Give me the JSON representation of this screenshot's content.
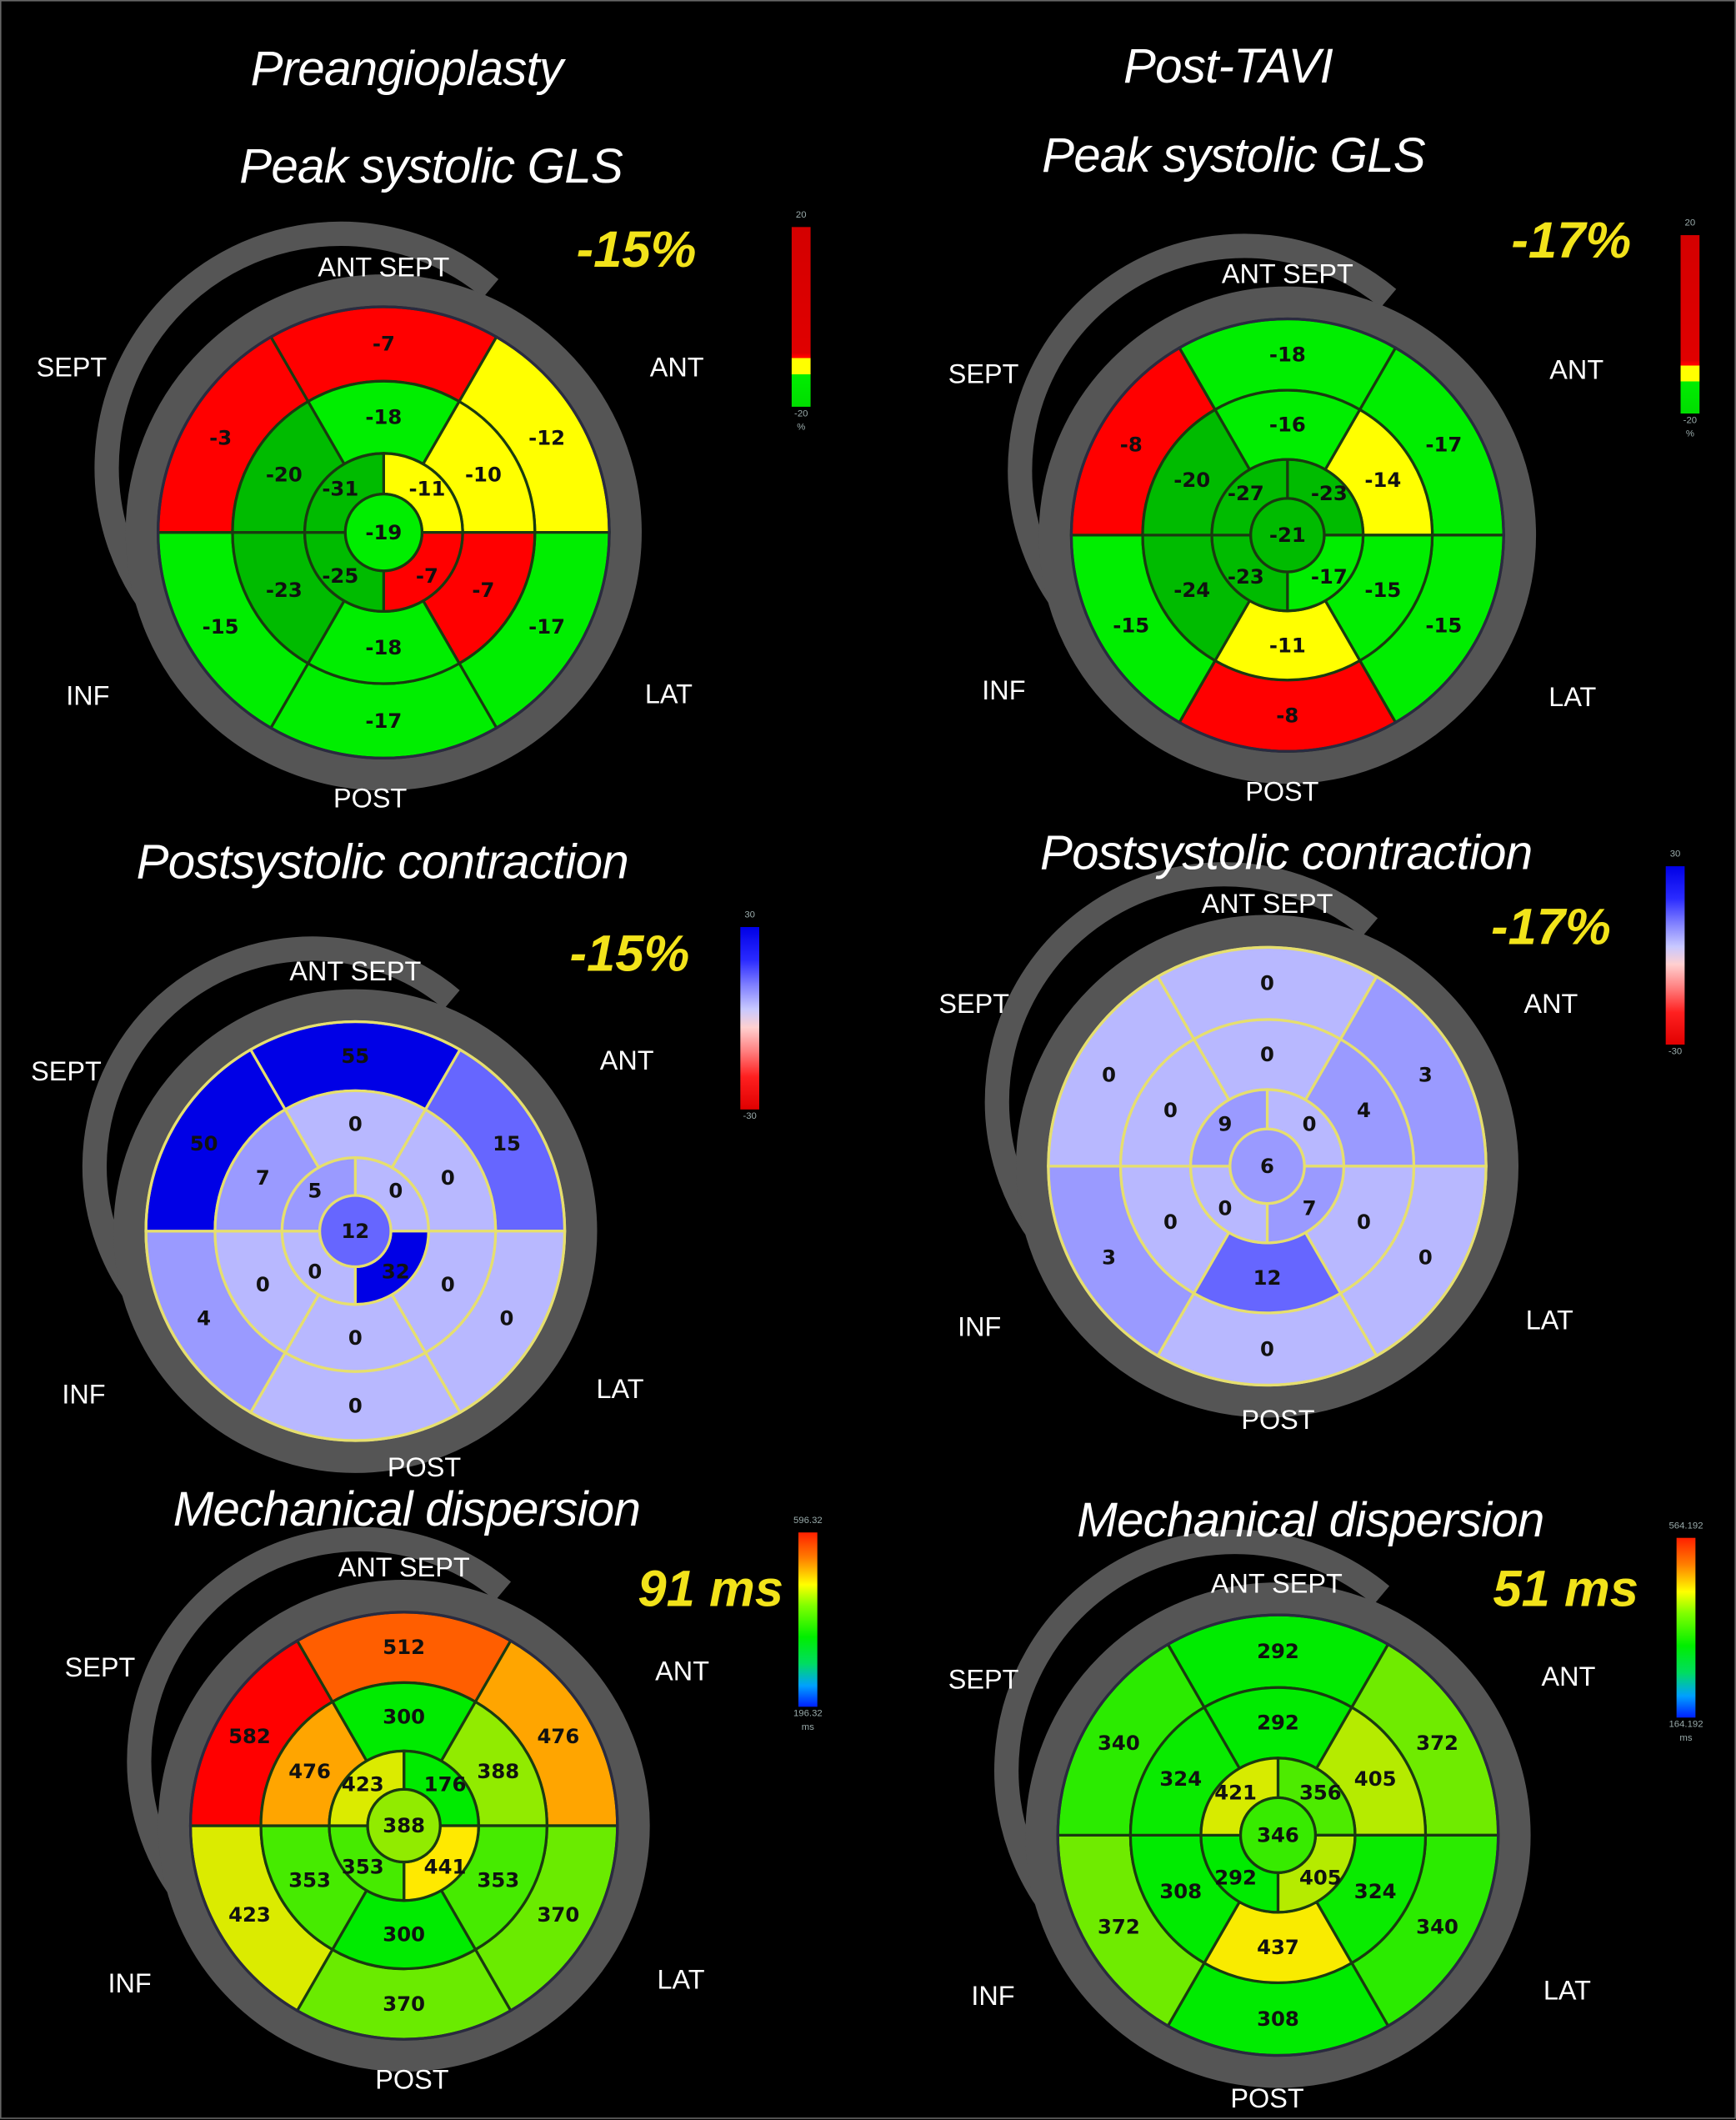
{
  "columns": [
    {
      "title": "Preangioplasty"
    },
    {
      "title": "Post-TAVI"
    }
  ],
  "orientation_labels": {
    "ant_sept": "ANT SEPT",
    "sept": "SEPT",
    "ant": "ANT",
    "inf": "INF",
    "lat": "LAT",
    "post": "POST"
  },
  "panels": [
    {
      "id": "gls-pre",
      "heading": "Peak systolic GLS",
      "type": "gls",
      "summary": "-15%",
      "colorbar": {
        "top": "20",
        "bottom": "-20",
        "unit": "%"
      },
      "segments": {
        "basal": [
          "-7",
          "-12",
          "-17",
          "-17",
          "-15",
          "-3"
        ],
        "mid": [
          "-18",
          "-10",
          "-7",
          "-18",
          "-23",
          "-20"
        ],
        "apical": [
          "-11",
          "-7",
          "-25",
          "-31"
        ],
        "apex": "-19"
      }
    },
    {
      "id": "gls-post",
      "heading": "Peak systolic GLS",
      "type": "gls",
      "summary": "-17%",
      "colorbar": {
        "top": "20",
        "bottom": "-20",
        "unit": "%"
      },
      "segments": {
        "basal": [
          "-18",
          "-17",
          "-15",
          "-8",
          "-15",
          "-8"
        ],
        "mid": [
          "-16",
          "-14",
          "-15",
          "-11",
          "-24",
          "-20"
        ],
        "apical": [
          "-23",
          "-17",
          "-23",
          "-27"
        ],
        "apex": "-21"
      }
    },
    {
      "id": "psc-pre",
      "heading": "Postsystolic contraction",
      "type": "psc",
      "summary": "-15%",
      "colorbar": {
        "top": "30",
        "bottom": "-30",
        "unit": ""
      },
      "segments": {
        "basal": [
          "55",
          "15",
          "0",
          "0",
          "4",
          "50"
        ],
        "mid": [
          "0",
          "0",
          "0",
          "0",
          "0",
          "7"
        ],
        "apical": [
          "0",
          "32",
          "0",
          "5"
        ],
        "apex": "12"
      }
    },
    {
      "id": "psc-post",
      "heading": "Postsystolic contraction",
      "type": "psc",
      "summary": "-17%",
      "colorbar": {
        "top": "30",
        "bottom": "-30",
        "unit": ""
      },
      "segments": {
        "basal": [
          "0",
          "3",
          "0",
          "0",
          "3",
          "0"
        ],
        "mid": [
          "0",
          "4",
          "0",
          "12",
          "0",
          "0"
        ],
        "apical": [
          "0",
          "7",
          "0",
          "9"
        ],
        "apex": "6"
      }
    },
    {
      "id": "md-pre",
      "heading": "Mechanical dispersion",
      "type": "md",
      "summary": "91 ms",
      "colorbar": {
        "top": "596.32",
        "bottom": "196.32",
        "unit": "ms"
      },
      "segments": {
        "basal": [
          "512",
          "476",
          "370",
          "370",
          "423",
          "582"
        ],
        "mid": [
          "300",
          "388",
          "353",
          "300",
          "353",
          "476"
        ],
        "apical": [
          "176",
          "441",
          "353",
          "423"
        ],
        "apex": "388"
      }
    },
    {
      "id": "md-post",
      "heading": "Mechanical dispersion",
      "type": "md",
      "summary": "51 ms",
      "colorbar": {
        "top": "564.192",
        "bottom": "164.192",
        "unit": "ms"
      },
      "segments": {
        "basal": [
          "292",
          "372",
          "340",
          "308",
          "372",
          "340"
        ],
        "mid": [
          "292",
          "405",
          "324",
          "437",
          "308",
          "324"
        ],
        "apical": [
          "356",
          "405",
          "292",
          "421"
        ],
        "apex": "346"
      }
    }
  ],
  "colors": {
    "summary_text": "#f2e31a",
    "gls_red": "#ff0000",
    "gls_yellow": "#ffff00",
    "gls_green": "#00ee00",
    "gls_dark_green": "#00bb00",
    "psc_light": "#b8b8ff",
    "psc_dark": "#0000e6",
    "ring_gray": "#555555"
  }
}
